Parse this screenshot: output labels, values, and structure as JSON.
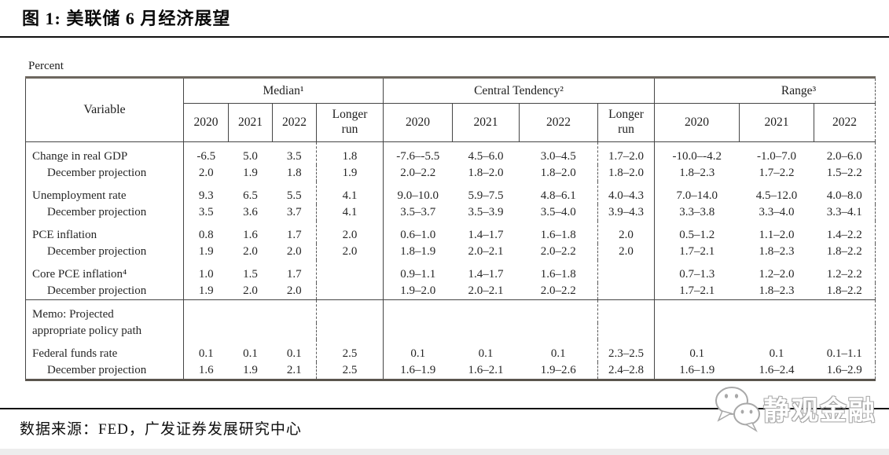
{
  "header": {
    "title": "图 1:  美联储 6 月经济展望"
  },
  "table": {
    "unit_label": "Percent",
    "variable_header": "Variable",
    "groups": [
      {
        "label": "Median¹",
        "years": [
          "2020",
          "2021",
          "2022",
          "Longer run"
        ]
      },
      {
        "label": "Central Tendency²",
        "years": [
          "2020",
          "2021",
          "2022",
          "Longer run"
        ]
      },
      {
        "label": "Range³",
        "years": [
          "2020",
          "2021",
          "2022"
        ]
      }
    ],
    "rows": [
      {
        "variable": "Change in real GDP",
        "indent": false,
        "group_start": true,
        "separator": false,
        "median": [
          "-6.5",
          "5.0",
          "3.5",
          "1.8"
        ],
        "central": [
          "-7.6–-5.5",
          "4.5–6.0",
          "3.0–4.5",
          "1.7–2.0"
        ],
        "range": [
          "-10.0–-4.2",
          "-1.0–7.0",
          "2.0–6.0"
        ]
      },
      {
        "variable": "December projection",
        "indent": true,
        "group_start": false,
        "separator": false,
        "median": [
          "2.0",
          "1.9",
          "1.8",
          "1.9"
        ],
        "central": [
          "2.0–2.2",
          "1.8–2.0",
          "1.8–2.0",
          "1.8–2.0"
        ],
        "range": [
          "1.8–2.3",
          "1.7–2.2",
          "1.5–2.2"
        ]
      },
      {
        "variable": "Unemployment rate",
        "indent": false,
        "group_start": true,
        "separator": false,
        "median": [
          "9.3",
          "6.5",
          "5.5",
          "4.1"
        ],
        "central": [
          "9.0–10.0",
          "5.9–7.5",
          "4.8–6.1",
          "4.0–4.3"
        ],
        "range": [
          "7.0–14.0",
          "4.5–12.0",
          "4.0–8.0"
        ]
      },
      {
        "variable": "December projection",
        "indent": true,
        "group_start": false,
        "separator": false,
        "median": [
          "3.5",
          "3.6",
          "3.7",
          "4.1"
        ],
        "central": [
          "3.5–3.7",
          "3.5–3.9",
          "3.5–4.0",
          "3.9–4.3"
        ],
        "range": [
          "3.3–3.8",
          "3.3–4.0",
          "3.3–4.1"
        ]
      },
      {
        "variable": "PCE inflation",
        "indent": false,
        "group_start": true,
        "separator": false,
        "median": [
          "0.8",
          "1.6",
          "1.7",
          "2.0"
        ],
        "central": [
          "0.6–1.0",
          "1.4–1.7",
          "1.6–1.8",
          "2.0"
        ],
        "range": [
          "0.5–1.2",
          "1.1–2.0",
          "1.4–2.2"
        ]
      },
      {
        "variable": "December projection",
        "indent": true,
        "group_start": false,
        "separator": false,
        "median": [
          "1.9",
          "2.0",
          "2.0",
          "2.0"
        ],
        "central": [
          "1.8–1.9",
          "2.0–2.1",
          "2.0–2.2",
          "2.0"
        ],
        "range": [
          "1.7–2.1",
          "1.8–2.3",
          "1.8–2.2"
        ]
      },
      {
        "variable": "Core PCE inflation⁴",
        "indent": false,
        "group_start": true,
        "separator": false,
        "median": [
          "1.0",
          "1.5",
          "1.7",
          ""
        ],
        "central": [
          "0.9–1.1",
          "1.4–1.7",
          "1.6–1.8",
          ""
        ],
        "range": [
          "0.7–1.3",
          "1.2–2.0",
          "1.2–2.2"
        ]
      },
      {
        "variable": "December projection",
        "indent": true,
        "group_start": false,
        "separator": false,
        "median": [
          "1.9",
          "2.0",
          "2.0",
          ""
        ],
        "central": [
          "1.9–2.0",
          "2.0–2.1",
          "2.0–2.2",
          ""
        ],
        "range": [
          "1.7–2.1",
          "1.8–2.3",
          "1.8–2.2"
        ]
      },
      {
        "variable": "Memo: Projected",
        "indent": false,
        "group_start": true,
        "separator": true,
        "median": [
          "",
          "",
          "",
          ""
        ],
        "central": [
          "",
          "",
          "",
          ""
        ],
        "range": [
          "",
          "",
          ""
        ]
      },
      {
        "variable": "appropriate policy path",
        "indent": false,
        "group_start": false,
        "separator": false,
        "median": [
          "",
          "",
          "",
          ""
        ],
        "central": [
          "",
          "",
          "",
          ""
        ],
        "range": [
          "",
          "",
          ""
        ]
      },
      {
        "variable": "Federal funds rate",
        "indent": false,
        "group_start": true,
        "separator": false,
        "median": [
          "0.1",
          "0.1",
          "0.1",
          "2.5"
        ],
        "central": [
          "0.1",
          "0.1",
          "0.1",
          "2.3–2.5"
        ],
        "range": [
          "0.1",
          "0.1",
          "0.1–1.1"
        ]
      },
      {
        "variable": "December projection",
        "indent": true,
        "group_start": false,
        "separator": false,
        "median": [
          "1.6",
          "1.9",
          "2.1",
          "2.5"
        ],
        "central": [
          "1.6–1.9",
          "1.6–2.1",
          "1.9–2.6",
          "2.4–2.8"
        ],
        "range": [
          "1.6–1.9",
          "1.6–2.4",
          "1.6–2.9"
        ]
      }
    ]
  },
  "footer": {
    "source": "数据来源：FED，广发证券发展研究中心"
  },
  "watermark": {
    "label": "静观金融",
    "icon": "wechat-icon"
  },
  "colors": {
    "rule": "#101010",
    "table_border": "#454545",
    "table_thick_border": "#6d675f",
    "text": "#232323",
    "watermark_outline": "#a8a8a8",
    "bottom_strip": "#ededed"
  }
}
